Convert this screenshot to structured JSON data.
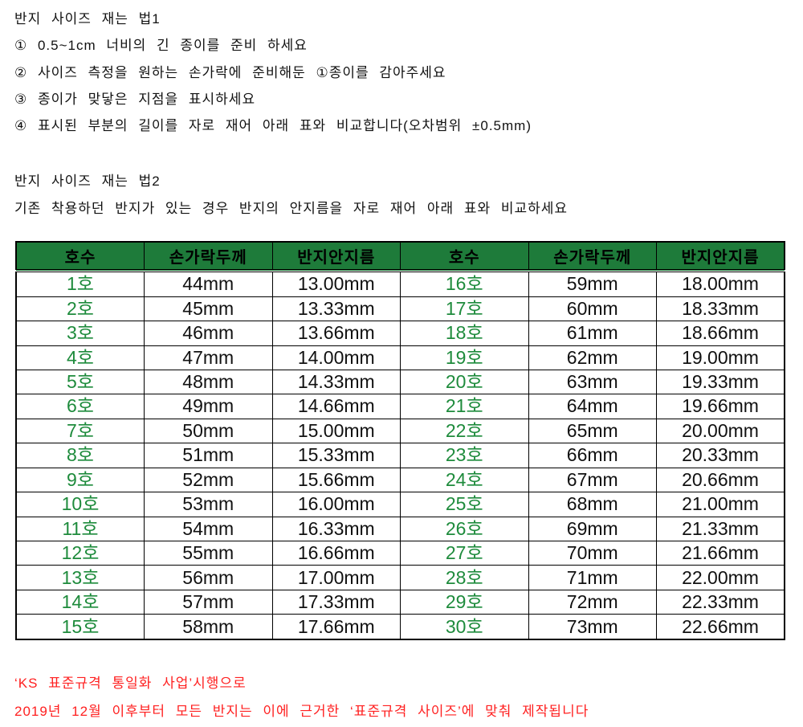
{
  "intro": {
    "title1": "반지 사이즈 재는 법1",
    "steps": [
      "① 0.5~1cm 너비의 긴 종이를 준비 하세요",
      "② 사이즈 측정을 원하는 손가락에 준비해둔 ①종이를 감아주세요",
      "③ 종이가 맞닿은 지점을 표시하세요",
      "④ 표시된 부분의 길이를 자로 재어 아래 표와 비교합니다(오차범위 ±0.5mm)"
    ],
    "title2": "반지 사이즈 재는 법2",
    "description2": "기존 착용하던 반지가 있는 경우 반지의 안지름을 자로 재어 아래 표와 비교하세요"
  },
  "size_table": {
    "headers": [
      "호수",
      "손가락두께",
      "반지안지름",
      "호수",
      "손가락두께",
      "반지안지름"
    ],
    "rows": [
      [
        "1호",
        "44mm",
        "13.00mm",
        "16호",
        "59mm",
        "18.00mm"
      ],
      [
        "2호",
        "45mm",
        "13.33mm",
        "17호",
        "60mm",
        "18.33mm"
      ],
      [
        "3호",
        "46mm",
        "13.66mm",
        "18호",
        "61mm",
        "18.66mm"
      ],
      [
        "4호",
        "47mm",
        "14.00mm",
        "19호",
        "62mm",
        "19.00mm"
      ],
      [
        "5호",
        "48mm",
        "14.33mm",
        "20호",
        "63mm",
        "19.33mm"
      ],
      [
        "6호",
        "49mm",
        "14.66mm",
        "21호",
        "64mm",
        "19.66mm"
      ],
      [
        "7호",
        "50mm",
        "15.00mm",
        "22호",
        "65mm",
        "20.00mm"
      ],
      [
        "8호",
        "51mm",
        "15.33mm",
        "23호",
        "66mm",
        "20.33mm"
      ],
      [
        "9호",
        "52mm",
        "15.66mm",
        "24호",
        "67mm",
        "20.66mm"
      ],
      [
        "10호",
        "53mm",
        "16.00mm",
        "25호",
        "68mm",
        "21.00mm"
      ],
      [
        "11호",
        "54mm",
        "16.33mm",
        "26호",
        "69mm",
        "21.33mm"
      ],
      [
        "12호",
        "55mm",
        "16.66mm",
        "27호",
        "70mm",
        "21.66mm"
      ],
      [
        "13호",
        "56mm",
        "17.00mm",
        "28호",
        "71mm",
        "22.00mm"
      ],
      [
        "14호",
        "57mm",
        "17.33mm",
        "29호",
        "72mm",
        "22.33mm"
      ],
      [
        "15호",
        "58mm",
        "17.66mm",
        "30호",
        "73mm",
        "22.66mm"
      ]
    ]
  },
  "footer": {
    "line1": "‘KS 표준규격 통일화 사업’시행으로",
    "line2": "2019년 12월 이후부터 모든 반지는 이에 근거한 ‘표준규격 사이즈’에 맞춰 제작됩니다"
  },
  "colors": {
    "header_green": "#1e7b3a",
    "size_green": "#1e8b3c",
    "alert_red": "#ff1f1f",
    "text_black": "#111111",
    "border_black": "#000000"
  }
}
